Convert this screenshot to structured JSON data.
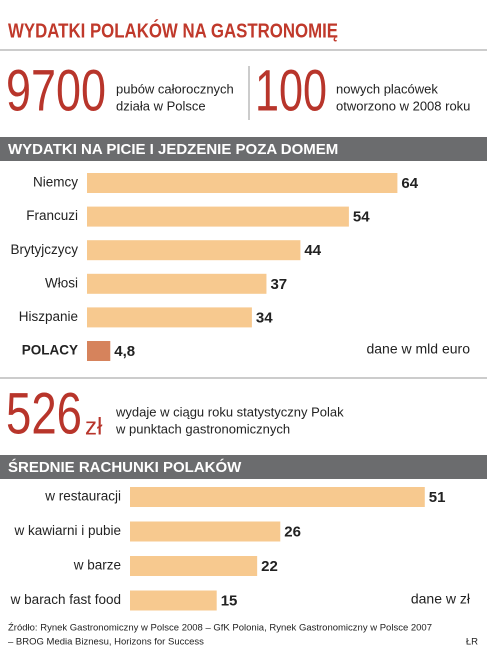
{
  "header": {
    "title": "WYDATKI POLAKÓW NA GASTRONOMIĘ"
  },
  "stats": [
    {
      "number": 9700,
      "text": [
        "pubów całorocznych",
        "działa w Polsce"
      ]
    },
    {
      "number": 100,
      "text": [
        "nowych placówek",
        "otworzono w 2008 roku"
      ]
    },
    {
      "number": 526,
      "unit": "zł",
      "text": [
        "wydaje w ciągu roku statystyczny Polak",
        "w punktach gastronomicznych"
      ]
    }
  ],
  "chart_data": [
    {
      "type": "bar",
      "orientation": "horizontal",
      "title": "WYDATKI NA PICIE I JEDZENIE POZA DOMEM",
      "categories": [
        "Niemcy",
        "Francuzi",
        "Brytyjczycy",
        "Włosi",
        "Hiszpanie",
        "POLACY"
      ],
      "values": [
        64,
        54,
        44,
        37,
        34,
        4.8
      ],
      "value_labels": [
        "64",
        "54",
        "44",
        "37",
        "34",
        "4,8"
      ],
      "colors": [
        "#f7c98f",
        "#f7c98f",
        "#f7c98f",
        "#f7c98f",
        "#f7c98f",
        "#d6835c"
      ],
      "category_colors": [
        "#222222",
        "#222222",
        "#222222",
        "#222222",
        "#222222",
        "#c4462c"
      ],
      "note": "dane w mld euro"
    },
    {
      "type": "bar",
      "orientation": "horizontal",
      "title": "ŚREDNIE RACHUNKI POLAKÓW",
      "categories": [
        "w restauracji",
        "w kawiarni i pubie",
        "w barze",
        "w barach fast food"
      ],
      "values": [
        51,
        26,
        22,
        15
      ],
      "colors": [
        "#f7c98f",
        "#f7c98f",
        "#f7c98f",
        "#f7c98f"
      ],
      "note": "dane w zł"
    }
  ],
  "footer": {
    "source": [
      "Źródło: Rynek Gastronomiczny w Polsce 2008 – GfK Polonia, Rynek Gastronomiczny w Polsce 2007",
      "– BROG Media Biznesu, Horizons for Success"
    ],
    "author": "ŁR"
  }
}
